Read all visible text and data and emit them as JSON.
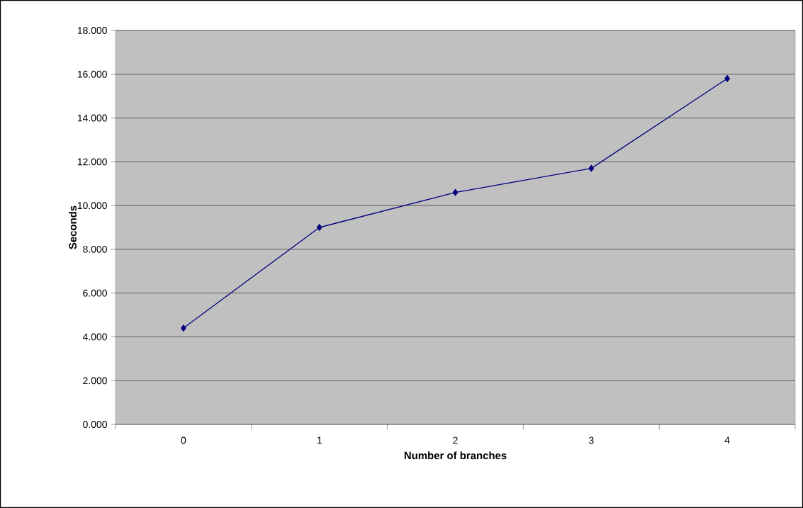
{
  "chart_data": {
    "type": "line",
    "xlabel": "Number of branches",
    "ylabel": "Seconds",
    "categories": [
      "0",
      "1",
      "2",
      "3",
      "4"
    ],
    "series": [
      {
        "color": "#000080",
        "values": [
          4.4,
          9.0,
          10.6,
          11.7,
          15.8
        ]
      }
    ],
    "ylim": [
      0,
      18
    ],
    "yticks": [
      {
        "value": 0,
        "label": "0.000"
      },
      {
        "value": 2,
        "label": "2.000"
      },
      {
        "value": 4,
        "label": "4.000"
      },
      {
        "value": 6,
        "label": "6.000"
      },
      {
        "value": 8,
        "label": "8.000"
      },
      {
        "value": 10,
        "label": "10.000"
      },
      {
        "value": 12,
        "label": "12.000"
      },
      {
        "value": 14,
        "label": "14.000"
      },
      {
        "value": 16,
        "label": "16.000"
      },
      {
        "value": 18,
        "label": "18.000"
      }
    ],
    "grid": "y",
    "legend": false,
    "marker": "diamond",
    "line_style": "solid"
  }
}
